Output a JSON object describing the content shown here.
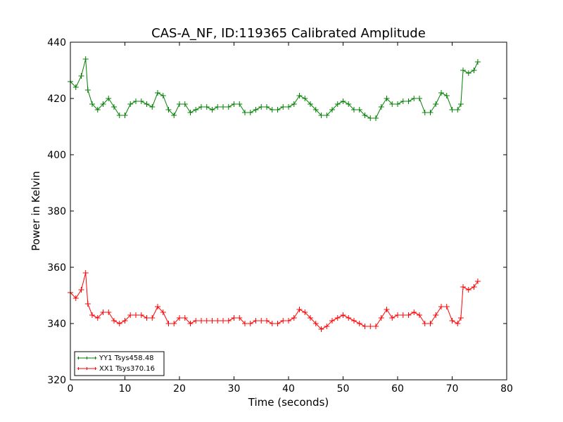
{
  "chart_data": {
    "type": "line",
    "title": "CAS-A_NF, ID:119365 Calibrated Amplitude",
    "xlabel": "Time (seconds)",
    "ylabel": "Power in Kelvin",
    "xlim": [
      0,
      80
    ],
    "ylim": [
      320,
      440
    ],
    "xticks": [
      0,
      10,
      20,
      30,
      40,
      50,
      60,
      70,
      80
    ],
    "yticks": [
      320,
      340,
      360,
      380,
      400,
      420,
      440
    ],
    "grid": false,
    "legend_position": "lower-left",
    "series": [
      {
        "name": "YY1 Tsys458.48",
        "color": "#008000",
        "marker": "+",
        "x": [
          0,
          1,
          2,
          2.8,
          3.2,
          4,
          5,
          6,
          7,
          8,
          9,
          10,
          11,
          12,
          13,
          14,
          15,
          16,
          17,
          18,
          19,
          20,
          21,
          22,
          23,
          24,
          25,
          26,
          27,
          28,
          29,
          30,
          31,
          32,
          33,
          34,
          35,
          36,
          37,
          38,
          39,
          40,
          41,
          42,
          43,
          44,
          45,
          46,
          47,
          48,
          49,
          50,
          51,
          52,
          53,
          54,
          55,
          56,
          57,
          58,
          59,
          60,
          61,
          62,
          63,
          64,
          65,
          66,
          67,
          68,
          69,
          70,
          71,
          71.6,
          72,
          73,
          74,
          74.7
        ],
        "y": [
          426,
          424,
          428,
          434,
          423,
          418,
          416,
          418,
          420,
          417,
          414,
          414,
          418,
          419,
          419,
          418,
          417,
          422,
          421,
          416,
          414,
          418,
          418,
          415,
          416,
          417,
          417,
          416,
          417,
          417,
          417,
          418,
          418,
          415,
          415,
          416,
          417,
          417,
          416,
          416,
          417,
          417,
          418,
          421,
          420,
          418,
          416,
          414,
          414,
          416,
          418,
          419,
          418,
          416,
          416,
          414,
          413,
          413,
          417,
          420,
          418,
          418,
          419,
          419,
          420,
          420,
          415,
          415,
          418,
          422,
          421,
          416,
          416,
          418,
          430,
          429,
          430,
          433
        ]
      },
      {
        "name": "XX1 Tsys370.16",
        "color": "#ff0000",
        "marker": "+",
        "x": [
          0,
          1,
          2,
          2.8,
          3.2,
          4,
          5,
          6,
          7,
          8,
          9,
          10,
          11,
          12,
          13,
          14,
          15,
          16,
          17,
          18,
          19,
          20,
          21,
          22,
          23,
          24,
          25,
          26,
          27,
          28,
          29,
          30,
          31,
          32,
          33,
          34,
          35,
          36,
          37,
          38,
          39,
          40,
          41,
          42,
          43,
          44,
          45,
          46,
          47,
          48,
          49,
          50,
          51,
          52,
          53,
          54,
          55,
          56,
          57,
          58,
          59,
          60,
          61,
          62,
          63,
          64,
          65,
          66,
          67,
          68,
          69,
          70,
          71,
          71.6,
          72,
          73,
          74,
          74.7
        ],
        "y": [
          351,
          349,
          352,
          358,
          347,
          343,
          342,
          344,
          344,
          341,
          340,
          341,
          343,
          343,
          343,
          342,
          342,
          346,
          344,
          340,
          340,
          342,
          342,
          340,
          341,
          341,
          341,
          341,
          341,
          341,
          341,
          342,
          342,
          340,
          340,
          341,
          341,
          341,
          340,
          340,
          341,
          341,
          342,
          345,
          344,
          342,
          340,
          338,
          339,
          341,
          342,
          343,
          342,
          341,
          340,
          339,
          339,
          339,
          342,
          345,
          342,
          343,
          343,
          343,
          344,
          343,
          340,
          340,
          343,
          346,
          346,
          341,
          340,
          342,
          353,
          352,
          353,
          355
        ]
      }
    ]
  }
}
